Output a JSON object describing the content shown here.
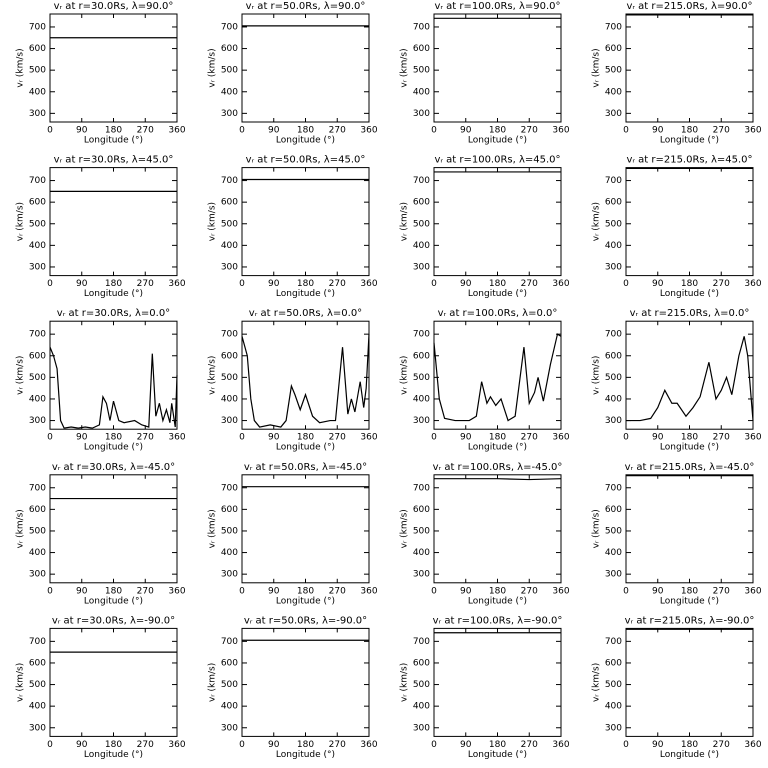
{
  "chart_data": [
    {
      "type": "line",
      "title": "vᵣ at r=30.0Rs, λ=90.0°",
      "xlabel": "Longitude (°)",
      "ylabel": "vᵣ (km/s)",
      "x": [
        0,
        360
      ],
      "values": [
        650,
        650
      ],
      "xlim": [
        0,
        360
      ],
      "ylim": [
        260,
        760
      ],
      "xticks": [
        0,
        90,
        180,
        270,
        360
      ],
      "yticks": [
        300,
        400,
        500,
        600,
        700
      ],
      "color": "#000000"
    },
    {
      "type": "line",
      "title": "vᵣ at r=50.0Rs, λ=90.0°",
      "xlabel": "Longitude (°)",
      "ylabel": "vᵣ (km/s)",
      "x": [
        0,
        360
      ],
      "values": [
        705,
        705
      ],
      "xlim": [
        0,
        360
      ],
      "ylim": [
        260,
        760
      ],
      "xticks": [
        0,
        90,
        180,
        270,
        360
      ],
      "yticks": [
        300,
        400,
        500,
        600,
        700
      ],
      "color": "#000000"
    },
    {
      "type": "line",
      "title": "vᵣ at r=100.0Rs, λ=90.0°",
      "xlabel": "Longitude (°)",
      "ylabel": "vᵣ (km/s)",
      "x": [
        0,
        360
      ],
      "values": [
        740,
        740
      ],
      "xlim": [
        0,
        360
      ],
      "ylim": [
        260,
        760
      ],
      "xticks": [
        0,
        90,
        180,
        270,
        360
      ],
      "yticks": [
        300,
        400,
        500,
        600,
        700
      ],
      "color": "#000000"
    },
    {
      "type": "line",
      "title": "vᵣ at r=215.0Rs, λ=90.0°",
      "xlabel": "Longitude (°)",
      "ylabel": "vᵣ (km/s)",
      "x": [
        0,
        360
      ],
      "values": [
        756,
        756
      ],
      "xlim": [
        0,
        360
      ],
      "ylim": [
        260,
        760
      ],
      "xticks": [
        0,
        90,
        180,
        270,
        360
      ],
      "yticks": [
        300,
        400,
        500,
        600,
        700
      ],
      "color": "#000000"
    },
    {
      "type": "line",
      "title": "vᵣ at r=30.0Rs, λ=45.0°",
      "xlabel": "Longitude (°)",
      "ylabel": "vᵣ (km/s)",
      "x": [
        0,
        360
      ],
      "values": [
        650,
        650
      ],
      "xlim": [
        0,
        360
      ],
      "ylim": [
        260,
        760
      ],
      "xticks": [
        0,
        90,
        180,
        270,
        360
      ],
      "yticks": [
        300,
        400,
        500,
        600,
        700
      ],
      "color": "#000000"
    },
    {
      "type": "line",
      "title": "vᵣ at r=50.0Rs, λ=45.0°",
      "xlabel": "Longitude (°)",
      "ylabel": "vᵣ (km/s)",
      "x": [
        0,
        360
      ],
      "values": [
        705,
        705
      ],
      "xlim": [
        0,
        360
      ],
      "ylim": [
        260,
        760
      ],
      "xticks": [
        0,
        90,
        180,
        270,
        360
      ],
      "yticks": [
        300,
        400,
        500,
        600,
        700
      ],
      "color": "#000000"
    },
    {
      "type": "line",
      "title": "vᵣ at r=100.0Rs, λ=45.0°",
      "xlabel": "Longitude (°)",
      "ylabel": "vᵣ (km/s)",
      "x": [
        0,
        360
      ],
      "values": [
        740,
        740
      ],
      "xlim": [
        0,
        360
      ],
      "ylim": [
        260,
        760
      ],
      "xticks": [
        0,
        90,
        180,
        270,
        360
      ],
      "yticks": [
        300,
        400,
        500,
        600,
        700
      ],
      "color": "#000000"
    },
    {
      "type": "line",
      "title": "vᵣ at r=215.0Rs, λ=45.0°",
      "xlabel": "Longitude (°)",
      "ylabel": "vᵣ (km/s)",
      "x": [
        0,
        360
      ],
      "values": [
        756,
        756
      ],
      "xlim": [
        0,
        360
      ],
      "ylim": [
        260,
        760
      ],
      "xticks": [
        0,
        90,
        180,
        270,
        360
      ],
      "yticks": [
        300,
        400,
        500,
        600,
        700
      ],
      "color": "#000000"
    },
    {
      "type": "line",
      "title": "vᵣ at r=30.0Rs, λ=0.0°",
      "xlabel": "Longitude (°)",
      "ylabel": "vᵣ (km/s)",
      "x": [
        0,
        10,
        20,
        30,
        40,
        60,
        80,
        100,
        120,
        140,
        150,
        160,
        170,
        180,
        195,
        210,
        240,
        260,
        280,
        290,
        300,
        310,
        320,
        330,
        340,
        345,
        355,
        360
      ],
      "values": [
        640,
        600,
        540,
        300,
        265,
        270,
        265,
        270,
        265,
        280,
        410,
        380,
        300,
        390,
        300,
        290,
        300,
        280,
        270,
        610,
        320,
        380,
        300,
        350,
        290,
        380,
        270,
        510
      ],
      "xlim": [
        0,
        360
      ],
      "ylim": [
        260,
        760
      ],
      "xticks": [
        0,
        90,
        180,
        270,
        360
      ],
      "yticks": [
        300,
        400,
        500,
        600,
        700
      ],
      "color": "#000000"
    },
    {
      "type": "line",
      "title": "vᵣ at r=50.0Rs, λ=0.0°",
      "xlabel": "Longitude (°)",
      "ylabel": "vᵣ (km/s)",
      "x": [
        0,
        15,
        25,
        35,
        50,
        80,
        110,
        125,
        140,
        150,
        165,
        180,
        200,
        220,
        250,
        265,
        285,
        300,
        310,
        320,
        335,
        345,
        352,
        360
      ],
      "values": [
        690,
        600,
        400,
        300,
        270,
        280,
        270,
        300,
        460,
        420,
        350,
        420,
        320,
        290,
        300,
        300,
        640,
        330,
        400,
        340,
        480,
        360,
        450,
        700
      ],
      "xlim": [
        0,
        360
      ],
      "ylim": [
        260,
        760
      ],
      "xticks": [
        0,
        90,
        180,
        270,
        360
      ],
      "yticks": [
        300,
        400,
        500,
        600,
        700
      ],
      "color": "#000000"
    },
    {
      "type": "line",
      "title": "vᵣ at r=100.0Rs, λ=0.0°",
      "xlabel": "Longitude (°)",
      "ylabel": "vᵣ (km/s)",
      "x": [
        0,
        15,
        30,
        60,
        100,
        120,
        135,
        150,
        160,
        175,
        190,
        210,
        230,
        255,
        270,
        285,
        295,
        310,
        330,
        350,
        360
      ],
      "values": [
        660,
        400,
        310,
        300,
        300,
        320,
        480,
        380,
        410,
        370,
        400,
        300,
        320,
        640,
        380,
        430,
        500,
        390,
        560,
        700,
        690
      ],
      "xlim": [
        0,
        360
      ],
      "ylim": [
        260,
        760
      ],
      "xticks": [
        0,
        90,
        180,
        270,
        360
      ],
      "yticks": [
        300,
        400,
        500,
        600,
        700
      ],
      "color": "#000000"
    },
    {
      "type": "line",
      "title": "vᵣ at r=215.0Rs, λ=0.0°",
      "xlabel": "Longitude (°)",
      "ylabel": "vᵣ (km/s)",
      "x": [
        0,
        40,
        70,
        90,
        110,
        130,
        145,
        170,
        190,
        210,
        235,
        255,
        270,
        285,
        300,
        320,
        335,
        345,
        360
      ],
      "values": [
        300,
        300,
        310,
        360,
        440,
        380,
        380,
        320,
        360,
        410,
        570,
        400,
        440,
        500,
        420,
        600,
        690,
        600,
        300
      ],
      "xlim": [
        0,
        360
      ],
      "ylim": [
        260,
        760
      ],
      "xticks": [
        0,
        90,
        180,
        270,
        360
      ],
      "yticks": [
        300,
        400,
        500,
        600,
        700
      ],
      "color": "#000000"
    },
    {
      "type": "line",
      "title": "vᵣ at r=30.0Rs, λ=-45.0°",
      "xlabel": "Longitude (°)",
      "ylabel": "vᵣ (km/s)",
      "x": [
        0,
        360
      ],
      "values": [
        650,
        650
      ],
      "xlim": [
        0,
        360
      ],
      "ylim": [
        260,
        760
      ],
      "xticks": [
        0,
        90,
        180,
        270,
        360
      ],
      "yticks": [
        300,
        400,
        500,
        600,
        700
      ],
      "color": "#000000"
    },
    {
      "type": "line",
      "title": "vᵣ at r=50.0Rs, λ=-45.0°",
      "xlabel": "Longitude (°)",
      "ylabel": "vᵣ (km/s)",
      "x": [
        0,
        360
      ],
      "values": [
        705,
        705
      ],
      "xlim": [
        0,
        360
      ],
      "ylim": [
        260,
        760
      ],
      "xticks": [
        0,
        90,
        180,
        270,
        360
      ],
      "yticks": [
        300,
        400,
        500,
        600,
        700
      ],
      "color": "#000000"
    },
    {
      "type": "line",
      "title": "vᵣ at r=100.0Rs, λ=-45.0°",
      "xlabel": "Longitude (°)",
      "ylabel": "vᵣ (km/s)",
      "x": [
        0,
        180,
        270,
        360
      ],
      "values": [
        742,
        742,
        738,
        742
      ],
      "xlim": [
        0,
        360
      ],
      "ylim": [
        260,
        760
      ],
      "xticks": [
        0,
        90,
        180,
        270,
        360
      ],
      "yticks": [
        300,
        400,
        500,
        600,
        700
      ],
      "color": "#000000"
    },
    {
      "type": "line",
      "title": "vᵣ at r=215.0Rs, λ=-45.0°",
      "xlabel": "Longitude (°)",
      "ylabel": "vᵣ (km/s)",
      "x": [
        0,
        360
      ],
      "values": [
        756,
        756
      ],
      "xlim": [
        0,
        360
      ],
      "ylim": [
        260,
        760
      ],
      "xticks": [
        0,
        90,
        180,
        270,
        360
      ],
      "yticks": [
        300,
        400,
        500,
        600,
        700
      ],
      "color": "#000000"
    },
    {
      "type": "line",
      "title": "vᵣ at r=30.0Rs, λ=-90.0°",
      "xlabel": "Longitude (°)",
      "ylabel": "vᵣ (km/s)",
      "x": [
        0,
        360
      ],
      "values": [
        650,
        650
      ],
      "xlim": [
        0,
        360
      ],
      "ylim": [
        260,
        760
      ],
      "xticks": [
        0,
        90,
        180,
        270,
        360
      ],
      "yticks": [
        300,
        400,
        500,
        600,
        700
      ],
      "color": "#000000"
    },
    {
      "type": "line",
      "title": "vᵣ at r=50.0Rs, λ=-90.0°",
      "xlabel": "Longitude (°)",
      "ylabel": "vᵣ (km/s)",
      "x": [
        0,
        360
      ],
      "values": [
        705,
        705
      ],
      "xlim": [
        0,
        360
      ],
      "ylim": [
        260,
        760
      ],
      "xticks": [
        0,
        90,
        180,
        270,
        360
      ],
      "yticks": [
        300,
        400,
        500,
        600,
        700
      ],
      "color": "#000000"
    },
    {
      "type": "line",
      "title": "vᵣ at r=100.0Rs, λ=-90.0°",
      "xlabel": "Longitude (°)",
      "ylabel": "vᵣ (km/s)",
      "x": [
        0,
        360
      ],
      "values": [
        740,
        740
      ],
      "xlim": [
        0,
        360
      ],
      "ylim": [
        260,
        760
      ],
      "xticks": [
        0,
        90,
        180,
        270,
        360
      ],
      "yticks": [
        300,
        400,
        500,
        600,
        700
      ],
      "color": "#000000"
    },
    {
      "type": "line",
      "title": "vᵣ at r=215.0Rs, λ=-90.0°",
      "xlabel": "Longitude (°)",
      "ylabel": "vᵣ (km/s)",
      "x": [
        0,
        360
      ],
      "values": [
        756,
        756
      ],
      "xlim": [
        0,
        360
      ],
      "ylim": [
        260,
        760
      ],
      "xticks": [
        0,
        90,
        180,
        270,
        360
      ],
      "yticks": [
        300,
        400,
        500,
        600,
        700
      ],
      "color": "#000000"
    }
  ]
}
